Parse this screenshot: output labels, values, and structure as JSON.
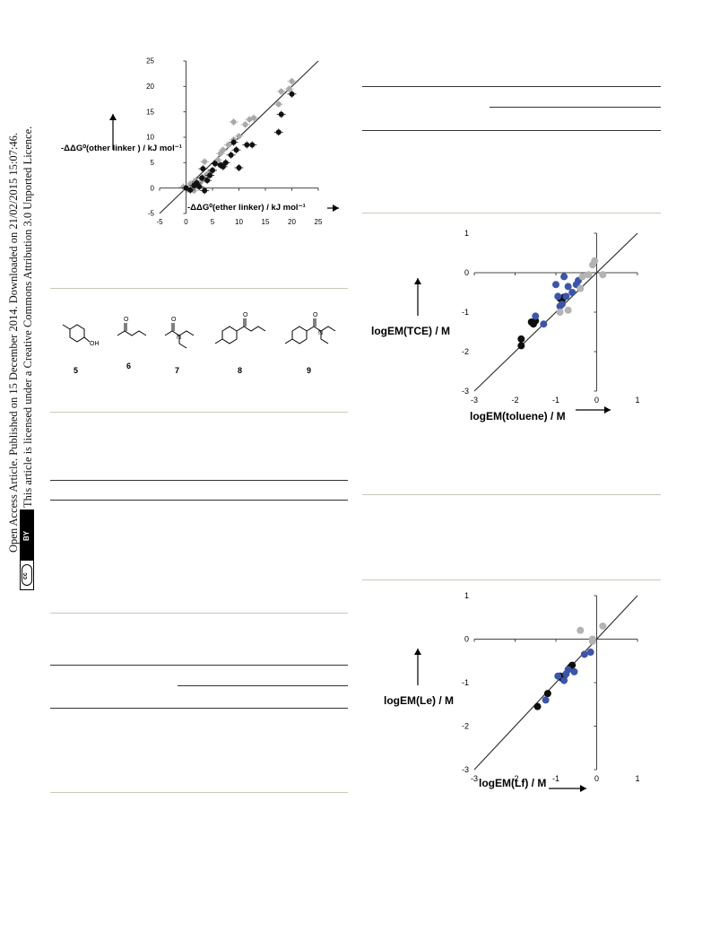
{
  "sidebar": {
    "line1": "Open Access Article. Published on 15 December 2014. Downloaded on 21/02/2015 15:07:46.",
    "line2": "This article is licensed under a Creative Commons Attribution 3.0 Unported Licence.",
    "badge_cc": "cc",
    "badge_by": "BY"
  },
  "compounds": [
    "5",
    "6",
    "7",
    "8",
    "9"
  ],
  "compound_atoms": {
    "oh": "OH",
    "o": "O",
    "n": "N"
  },
  "charts": {
    "c1": {
      "xlabel": "-ΔΔG⁰(ether linker) / kJ mol⁻¹",
      "ylabel": "-ΔΔG⁰(other linker ) / kJ mol⁻¹"
    },
    "c2": {
      "xlabel": "logEM(toluene) / M",
      "ylabel": "logEM(TCE) / M"
    },
    "c3": {
      "xlabel": "logEM(Lf) / M",
      "ylabel": "logEM(Le) / M"
    }
  },
  "chart_data": [
    {
      "type": "scatter",
      "xlabel": "-ΔΔG⁰(ether linker) / kJ mol⁻¹",
      "ylabel": "-ΔΔG⁰(other linker ) / kJ mol⁻¹",
      "xlim": [
        -5,
        25
      ],
      "ylim": [
        -5,
        25
      ],
      "xticks": [
        -5,
        0,
        5,
        10,
        15,
        20,
        25
      ],
      "yticks": [
        -5,
        0,
        5,
        10,
        15,
        20,
        25
      ],
      "reference_line": [
        [
          -5,
          -5
        ],
        [
          25,
          25
        ]
      ],
      "colors": {
        "black": "#111111",
        "grey": "#a9a9a9"
      },
      "series": [
        {
          "color": "grey",
          "x": [
            -0.5,
            0.3,
            0.8,
            1.2,
            1.8,
            2.2,
            2.8,
            3.3,
            3.8,
            4.3,
            5.0,
            6.0,
            7.0,
            8.0,
            9.0,
            10.0,
            11.2,
            12.8,
            17.5,
            19.5,
            20.0,
            9.0,
            3.5,
            1.5,
            2.5,
            6.5,
            12.0,
            18.0
          ],
          "y": [
            0.2,
            -0.3,
            0.8,
            0.5,
            1.5,
            0.8,
            1.2,
            2.0,
            2.5,
            3.0,
            3.5,
            5.5,
            7.5,
            8.5,
            9.5,
            10.2,
            12.5,
            13.8,
            16.5,
            19.5,
            21.0,
            13.0,
            5.2,
            -0.5,
            0.2,
            6.8,
            13.5,
            19.0
          ]
        },
        {
          "color": "black",
          "x": [
            0.0,
            0.8,
            1.5,
            2.0,
            2.5,
            3.0,
            3.5,
            4.0,
            4.5,
            5.0,
            6.5,
            7.0,
            7.5,
            8.5,
            9.0,
            9.5,
            10.0,
            11.5,
            12.5,
            17.5,
            18.0,
            20.0,
            3.2,
            5.5
          ],
          "y": [
            0.0,
            -0.4,
            0.5,
            1.0,
            0.3,
            2.0,
            -0.5,
            1.5,
            2.5,
            3.5,
            4.5,
            4.2,
            5.0,
            6.5,
            9.0,
            7.5,
            4.0,
            8.5,
            8.5,
            11.0,
            14.5,
            18.5,
            3.8,
            4.8
          ]
        }
      ]
    },
    {
      "type": "scatter",
      "xlabel": "logEM(toluene) / M",
      "ylabel": "logEM(TCE) / M",
      "xlim": [
        -3,
        1
      ],
      "ylim": [
        -3,
        1
      ],
      "xticks": [
        -3,
        -2,
        -1,
        0,
        1
      ],
      "yticks": [
        -3,
        -2,
        -1,
        0,
        1
      ],
      "reference_line": [
        [
          -3,
          -3
        ],
        [
          1,
          1
        ]
      ],
      "colors": {
        "black": "#0d0d0d",
        "blue": "#3c55a8",
        "grey": "#b3b3b3"
      },
      "series": [
        {
          "color": "black",
          "x": [
            -1.85,
            -1.85,
            -1.6,
            -1.55,
            -1.5,
            -0.9,
            -0.85,
            -0.8
          ],
          "y": [
            -1.85,
            -1.68,
            -1.25,
            -1.3,
            -1.22,
            -0.65,
            -0.7,
            -0.62
          ]
        },
        {
          "color": "blue",
          "x": [
            -1.5,
            -1.3,
            -1.0,
            -0.95,
            -0.9,
            -0.85,
            -0.8,
            -0.75,
            -0.7,
            -0.6,
            -0.5,
            -0.45
          ],
          "y": [
            -1.1,
            -1.3,
            -0.3,
            -0.6,
            -0.85,
            -0.8,
            -0.1,
            -0.6,
            -0.35,
            -0.5,
            -0.3,
            -0.2
          ]
        },
        {
          "color": "grey",
          "x": [
            -0.9,
            -0.7,
            -0.4,
            -0.35,
            -0.2,
            -0.1,
            -0.05,
            0.15
          ],
          "y": [
            -1.0,
            -0.95,
            -0.4,
            -0.1,
            -0.05,
            0.2,
            0.3,
            -0.05
          ]
        }
      ]
    },
    {
      "type": "scatter",
      "xlabel": "logEM(Lf) / M",
      "ylabel": "logEM(Le) / M",
      "xlim": [
        -3,
        1
      ],
      "ylim": [
        -3,
        1
      ],
      "xticks": [
        -3,
        -2,
        -1,
        0,
        1
      ],
      "yticks": [
        -3,
        -2,
        -1,
        0,
        1
      ],
      "reference_line": [
        [
          -3,
          -3
        ],
        [
          1,
          1
        ]
      ],
      "colors": {
        "black": "#0d0d0d",
        "blue": "#3c55a8",
        "grey": "#b3b3b3"
      },
      "series": [
        {
          "color": "black",
          "x": [
            -1.45,
            -1.2,
            -0.9,
            -0.85,
            -0.8,
            -0.65,
            -0.6
          ],
          "y": [
            -1.55,
            -1.25,
            -0.85,
            -0.9,
            -0.85,
            -0.65,
            -0.6
          ]
        },
        {
          "color": "blue",
          "x": [
            -1.25,
            -0.95,
            -0.8,
            -0.7,
            -0.55,
            -0.3,
            -0.15,
            -0.75
          ],
          "y": [
            -1.4,
            -0.85,
            -0.95,
            -0.7,
            -0.75,
            -0.35,
            -0.3,
            -0.8
          ]
        },
        {
          "color": "grey",
          "x": [
            -0.4,
            -0.1,
            -0.1,
            0.15
          ],
          "y": [
            0.2,
            -0.05,
            0.0,
            0.3
          ]
        }
      ]
    }
  ]
}
